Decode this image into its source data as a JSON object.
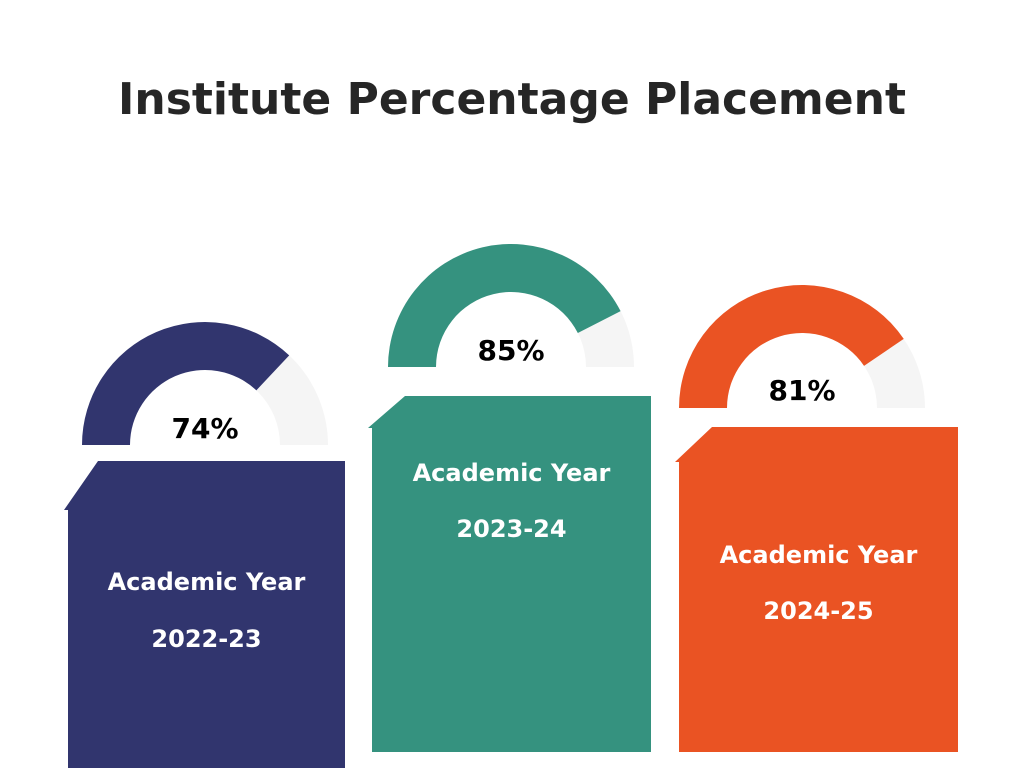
{
  "chart_data": {
    "type": "gauge",
    "title": "Institute Percentage Placement",
    "categories": [
      "Academic Year 2022-23",
      "Academic Year 2023-24",
      "Academic Year 2024-25"
    ],
    "label_lines": [
      [
        "Academic Year",
        "2022-23"
      ],
      [
        "Academic Year",
        "2023-24"
      ],
      [
        "Academic Year",
        "2024-25"
      ]
    ],
    "values": [
      74,
      85,
      81
    ],
    "value_labels": [
      "74%",
      "85%",
      "81%"
    ],
    "max": 100,
    "colors": [
      "#31356E",
      "#35927F",
      "#EA5323"
    ],
    "track_color": "#F5F5F5"
  }
}
